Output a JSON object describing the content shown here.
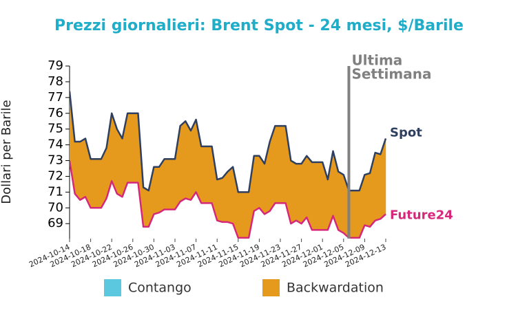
{
  "chart_data": {
    "type": "line",
    "title": "Prezzi giornalieri: Brent Spot - 24 mesi, $/Barile",
    "ylabel": "Dollari per Barile",
    "x": [
      "2024-10-14",
      "2024-10-15",
      "2024-10-16",
      "2024-10-17",
      "2024-10-18",
      "2024-10-19",
      "2024-10-20",
      "2024-10-21",
      "2024-10-22",
      "2024-10-23",
      "2024-10-24",
      "2024-10-25",
      "2024-10-26",
      "2024-10-27",
      "2024-10-28",
      "2024-10-29",
      "2024-10-30",
      "2024-10-31",
      "2024-11-01",
      "2024-11-02",
      "2024-11-03",
      "2024-11-04",
      "2024-11-05",
      "2024-11-06",
      "2024-11-07",
      "2024-11-08",
      "2024-11-09",
      "2024-11-10",
      "2024-11-11",
      "2024-11-12",
      "2024-11-13",
      "2024-11-14",
      "2024-11-15",
      "2024-11-16",
      "2024-11-17",
      "2024-11-18",
      "2024-11-19",
      "2024-11-20",
      "2024-11-21",
      "2024-11-22",
      "2024-11-23",
      "2024-11-24",
      "2024-11-25",
      "2024-11-26",
      "2024-11-27",
      "2024-11-28",
      "2024-11-29",
      "2024-11-30",
      "2024-12-01",
      "2024-12-02",
      "2024-12-03",
      "2024-12-04",
      "2024-12-05",
      "2024-12-06",
      "2024-12-07",
      "2024-12-08",
      "2024-12-09",
      "2024-12-10",
      "2024-12-11",
      "2024-12-12",
      "2024-12-13"
    ],
    "series": [
      {
        "name": "Spot",
        "color": "#2e3f5f",
        "values": [
          77.4,
          74.2,
          74.2,
          74.4,
          73.1,
          73.1,
          73.1,
          73.8,
          76.0,
          75.0,
          74.4,
          76.0,
          76.0,
          76.0,
          71.3,
          71.1,
          72.6,
          72.6,
          73.1,
          73.1,
          73.1,
          75.2,
          75.5,
          74.9,
          75.6,
          73.9,
          73.9,
          73.9,
          71.8,
          71.9,
          72.3,
          72.6,
          71.0,
          71.0,
          71.0,
          73.3,
          73.3,
          72.8,
          74.2,
          75.2,
          75.2,
          75.2,
          73.0,
          72.8,
          72.8,
          73.3,
          72.9,
          72.9,
          72.9,
          71.8,
          73.6,
          72.3,
          72.1,
          71.1,
          71.1,
          71.1,
          72.1,
          72.2,
          73.5,
          73.4,
          74.4
        ]
      },
      {
        "name": "Future24",
        "color": "#d6287a",
        "values": [
          73.0,
          70.9,
          70.5,
          70.7,
          70.0,
          70.0,
          70.0,
          70.6,
          71.7,
          70.9,
          70.7,
          71.6,
          71.6,
          71.6,
          68.8,
          68.8,
          69.6,
          69.7,
          69.9,
          69.9,
          69.9,
          70.4,
          70.6,
          70.5,
          71.0,
          70.3,
          70.3,
          70.3,
          69.2,
          69.1,
          69.1,
          69.0,
          68.1,
          68.1,
          68.1,
          69.8,
          70.0,
          69.6,
          69.8,
          70.3,
          70.3,
          70.3,
          69.0,
          69.2,
          69.0,
          69.4,
          68.6,
          68.6,
          68.6,
          68.6,
          69.5,
          68.6,
          68.4,
          68.1,
          68.1,
          68.1,
          68.9,
          68.8,
          69.2,
          69.3,
          69.6
        ]
      }
    ],
    "fill_legend": [
      {
        "name": "Contango",
        "color": "#5bc8e0"
      },
      {
        "name": "Backwardation",
        "color": "#e59a1e"
      }
    ],
    "annotation": {
      "x": "2024-12-06",
      "lines": [
        "Ultima",
        "Settimana"
      ],
      "color": "#808080"
    },
    "xlim": [
      "2024-10-14",
      "2024-12-13"
    ],
    "xticks": [
      "2024-10-14",
      "2024-10-18",
      "2024-10-22",
      "2024-10-26",
      "2024-10-30",
      "2024-11-03",
      "2024-11-07",
      "2024-11-11",
      "2024-11-15",
      "2024-11-19",
      "2024-11-23",
      "2024-11-27",
      "2024-12-01",
      "2024-12-05",
      "2024-12-09",
      "2024-12-13"
    ],
    "ylim": [
      68.05,
      79
    ],
    "yticks": [
      69,
      70,
      71,
      72,
      73,
      74,
      75,
      76,
      77,
      78,
      79
    ]
  }
}
